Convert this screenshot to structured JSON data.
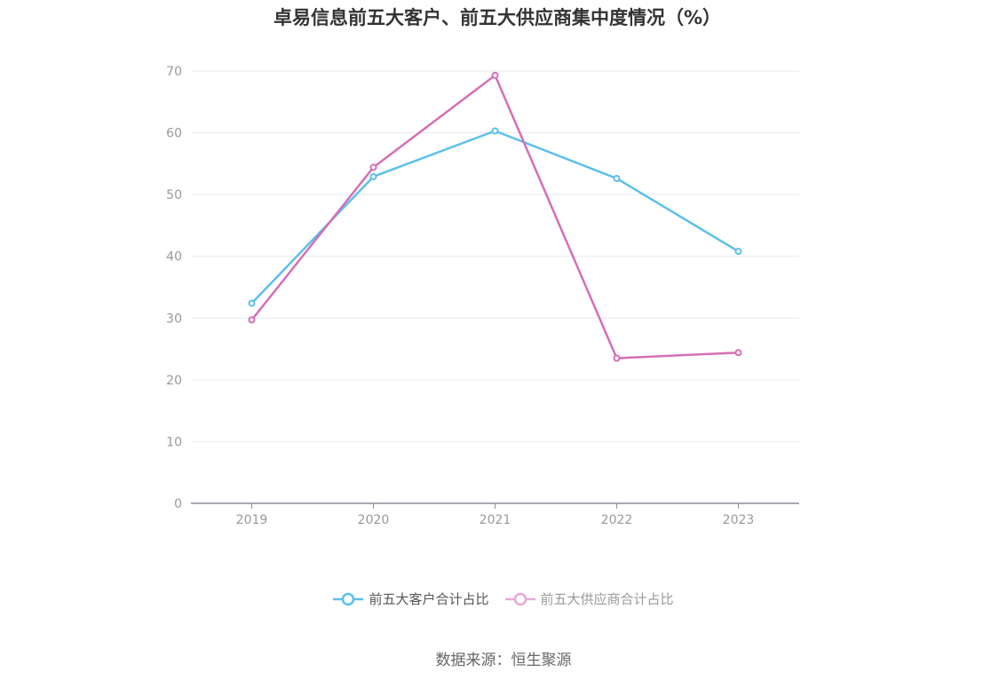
{
  "chart_data": {
    "type": "line",
    "title": "卓易信息前五大客户、前五大供应商集中度情况（%）",
    "categories": [
      "2019",
      "2020",
      "2021",
      "2022",
      "2023"
    ],
    "ylim": [
      0,
      70
    ],
    "yticks": [
      0,
      10,
      20,
      30,
      40,
      50,
      60,
      70
    ],
    "grid": true,
    "legend_position": "bottom",
    "series": [
      {
        "name": "前五大客户合计占比",
        "color": "#5bc0eb",
        "values": [
          32.4,
          52.9,
          60.3,
          52.6,
          40.8
        ]
      },
      {
        "name": "前五大供应商合计占比",
        "color": "#d56eb6",
        "values": [
          29.7,
          54.4,
          69.3,
          23.5,
          24.4
        ]
      }
    ]
  },
  "legend_colors": [
    "#5bc0eb",
    "#e8a9d6"
  ],
  "source": "数据来源：恒生聚源"
}
